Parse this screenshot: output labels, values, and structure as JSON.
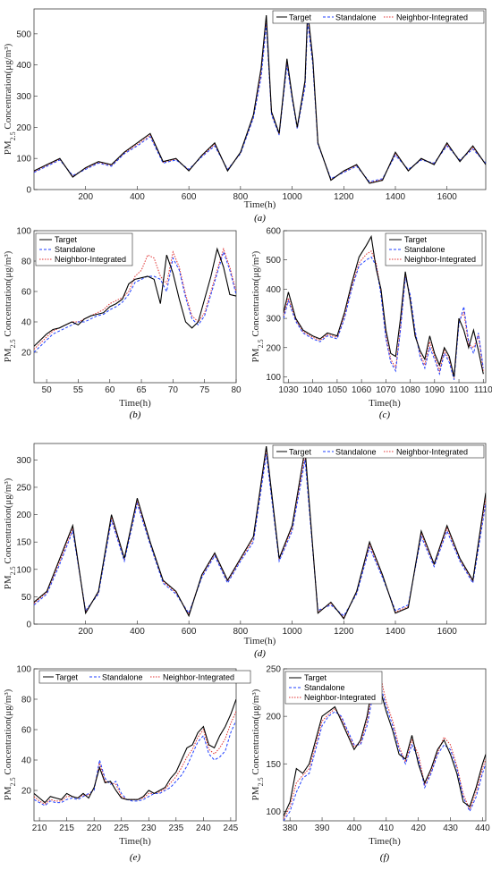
{
  "legend_labels": [
    "Target",
    "Standalone",
    "Neighbor-Integrated"
  ],
  "series_colors": {
    "Target": "#000000",
    "Standalone": "#1f3fff",
    "Neighbor-Integrated": "#e03030"
  },
  "chart_data": [
    {
      "id": "a",
      "type": "line",
      "caption": "(a)",
      "xlabel": "Time(h)",
      "ylabel": "PM2.5 Concentration(μg/m³)",
      "xlim": [
        0,
        1750
      ],
      "ylim": [
        0,
        580
      ],
      "xticks": [
        200,
        400,
        600,
        800,
        1000,
        1200,
        1400,
        1600
      ],
      "yticks": [
        0,
        100,
        200,
        300,
        400,
        500
      ],
      "legend": "top-right-inline",
      "x": [
        0,
        50,
        100,
        150,
        200,
        250,
        300,
        350,
        400,
        450,
        500,
        550,
        600,
        650,
        700,
        750,
        800,
        850,
        880,
        900,
        920,
        950,
        980,
        1000,
        1020,
        1050,
        1060,
        1080,
        1100,
        1150,
        1200,
        1250,
        1300,
        1350,
        1400,
        1450,
        1500,
        1550,
        1600,
        1650,
        1700,
        1750
      ],
      "series": [
        {
          "name": "Target",
          "values": [
            60,
            80,
            100,
            40,
            70,
            90,
            80,
            120,
            150,
            180,
            90,
            100,
            60,
            110,
            150,
            60,
            120,
            240,
            390,
            560,
            250,
            180,
            420,
            300,
            200,
            350,
            575,
            420,
            150,
            30,
            60,
            80,
            20,
            30,
            120,
            60,
            100,
            80,
            150,
            90,
            140,
            80
          ]
        },
        {
          "name": "Standalone",
          "values": [
            55,
            75,
            95,
            45,
            65,
            85,
            75,
            115,
            140,
            170,
            85,
            95,
            65,
            105,
            140,
            65,
            115,
            230,
            360,
            530,
            240,
            175,
            400,
            290,
            195,
            330,
            540,
            400,
            145,
            35,
            55,
            75,
            25,
            35,
            110,
            65,
            95,
            85,
            140,
            95,
            130,
            85
          ]
        },
        {
          "name": "Neighbor-Integrated",
          "values": [
            58,
            78,
            98,
            42,
            68,
            88,
            78,
            118,
            145,
            175,
            88,
            98,
            62,
            108,
            145,
            62,
            118,
            235,
            375,
            545,
            245,
            178,
            410,
            295,
            198,
            340,
            560,
            410,
            148,
            32,
            58,
            78,
            22,
            32,
            115,
            62,
            98,
            82,
            145,
            92,
            135,
            82
          ]
        }
      ]
    },
    {
      "id": "b",
      "type": "line",
      "caption": "(b)",
      "xlabel": "Time(h)",
      "ylabel": "PM2.5 Concentration(μg/m³)",
      "xlim": [
        48,
        80
      ],
      "ylim": [
        0,
        100
      ],
      "xticks": [
        50,
        55,
        60,
        65,
        70,
        75,
        80
      ],
      "yticks": [
        20,
        40,
        60,
        80,
        100
      ],
      "legend": "top-left",
      "x": [
        48,
        49,
        50,
        51,
        52,
        53,
        54,
        55,
        56,
        57,
        58,
        59,
        60,
        61,
        62,
        63,
        64,
        65,
        66,
        67,
        68,
        69,
        70,
        71,
        72,
        73,
        74,
        75,
        76,
        77,
        78,
        79,
        80
      ],
      "series": [
        {
          "name": "Target",
          "values": [
            24,
            28,
            32,
            35,
            36,
            38,
            40,
            38,
            42,
            44,
            45,
            46,
            50,
            52,
            55,
            65,
            68,
            69,
            70,
            68,
            52,
            84,
            72,
            55,
            40,
            36,
            40,
            55,
            70,
            88,
            76,
            58,
            57
          ]
        },
        {
          "name": "Standalone",
          "values": [
            20,
            24,
            28,
            32,
            34,
            36,
            38,
            40,
            40,
            42,
            44,
            45,
            48,
            50,
            53,
            58,
            66,
            68,
            70,
            70,
            68,
            60,
            82,
            74,
            56,
            42,
            38,
            44,
            58,
            72,
            86,
            74,
            58
          ]
        },
        {
          "name": "Neighbor-Integrated",
          "values": [
            22,
            26,
            30,
            34,
            36,
            38,
            40,
            40,
            42,
            44,
            46,
            48,
            52,
            54,
            56,
            60,
            70,
            74,
            84,
            82,
            70,
            65,
            86,
            76,
            58,
            44,
            40,
            46,
            60,
            74,
            88,
            76,
            60
          ]
        }
      ]
    },
    {
      "id": "c",
      "type": "line",
      "caption": "(c)",
      "xlabel": "Time(h)",
      "ylabel": "PM2.5 Concentration(μg/m³)",
      "xlim": [
        1028,
        1111
      ],
      "ylim": [
        80,
        600
      ],
      "xticks": [
        1030,
        1040,
        1050,
        1060,
        1070,
        1080,
        1090,
        1100,
        1110
      ],
      "yticks": [
        100,
        200,
        300,
        400,
        500,
        600
      ],
      "legend": "top-right",
      "x": [
        1028,
        1030,
        1033,
        1036,
        1040,
        1043,
        1046,
        1050,
        1053,
        1056,
        1059,
        1062,
        1064,
        1066,
        1068,
        1070,
        1072,
        1074,
        1076,
        1078,
        1080,
        1082,
        1084,
        1086,
        1088,
        1090,
        1092,
        1094,
        1096,
        1098,
        1100,
        1102,
        1104,
        1106,
        1108,
        1110
      ],
      "series": [
        {
          "name": "Target",
          "values": [
            320,
            390,
            300,
            260,
            240,
            230,
            250,
            240,
            320,
            420,
            510,
            550,
            580,
            470,
            400,
            260,
            180,
            170,
            300,
            460,
            360,
            240,
            190,
            160,
            240,
            180,
            140,
            200,
            170,
            100,
            300,
            260,
            200,
            260,
            190,
            110
          ]
        },
        {
          "name": "Standalone",
          "values": [
            300,
            360,
            290,
            250,
            230,
            220,
            240,
            230,
            300,
            400,
            480,
            500,
            510,
            480,
            380,
            230,
            150,
            120,
            260,
            440,
            380,
            260,
            170,
            130,
            200,
            160,
            110,
            180,
            150,
            90,
            280,
            340,
            220,
            180,
            250,
            130
          ]
        },
        {
          "name": "Neighbor-Integrated",
          "values": [
            310,
            370,
            295,
            255,
            235,
            225,
            245,
            235,
            310,
            410,
            490,
            520,
            530,
            490,
            390,
            240,
            160,
            130,
            270,
            450,
            370,
            250,
            180,
            140,
            220,
            170,
            120,
            190,
            160,
            95,
            290,
            320,
            210,
            200,
            240,
            120
          ]
        }
      ]
    },
    {
      "id": "d",
      "type": "line",
      "caption": "(d)",
      "xlabel": "Time(h)",
      "ylabel": "PM2.5 Concentration(μg/m³)",
      "xlim": [
        0,
        1750
      ],
      "ylim": [
        0,
        330
      ],
      "xticks": [
        200,
        400,
        600,
        800,
        1000,
        1200,
        1400,
        1600
      ],
      "yticks": [
        0,
        50,
        100,
        150,
        200,
        250,
        300
      ],
      "legend": "top-right-inline",
      "x": [
        0,
        50,
        100,
        150,
        200,
        250,
        300,
        350,
        400,
        450,
        500,
        550,
        600,
        650,
        700,
        750,
        800,
        850,
        900,
        950,
        1000,
        1050,
        1100,
        1150,
        1200,
        1250,
        1300,
        1350,
        1400,
        1450,
        1500,
        1550,
        1600,
        1650,
        1700,
        1750
      ],
      "series": [
        {
          "name": "Target",
          "values": [
            40,
            60,
            120,
            180,
            20,
            60,
            200,
            120,
            230,
            150,
            80,
            60,
            15,
            90,
            130,
            80,
            120,
            160,
            325,
            120,
            180,
            320,
            20,
            40,
            10,
            60,
            150,
            90,
            20,
            30,
            170,
            110,
            180,
            120,
            80,
            240
          ]
        },
        {
          "name": "Standalone",
          "values": [
            35,
            55,
            110,
            170,
            25,
            55,
            190,
            115,
            220,
            145,
            75,
            55,
            20,
            85,
            125,
            75,
            115,
            150,
            310,
            115,
            170,
            300,
            25,
            35,
            15,
            55,
            140,
            85,
            25,
            35,
            160,
            105,
            170,
            115,
            75,
            220
          ]
        },
        {
          "name": "Neighbor-Integrated",
          "values": [
            38,
            58,
            115,
            175,
            22,
            58,
            195,
            118,
            225,
            148,
            78,
            58,
            18,
            88,
            128,
            78,
            118,
            155,
            318,
            118,
            175,
            310,
            22,
            38,
            12,
            58,
            145,
            88,
            22,
            32,
            165,
            108,
            175,
            118,
            78,
            230
          ]
        }
      ]
    },
    {
      "id": "e",
      "type": "line",
      "caption": "(e)",
      "xlabel": "Time(h)",
      "ylabel": "PM2.5 Concentration(μg/m³)",
      "xlim": [
        209,
        246
      ],
      "ylim": [
        0,
        100
      ],
      "xticks": [
        210,
        215,
        220,
        225,
        230,
        235,
        240,
        245
      ],
      "yticks": [
        20,
        40,
        60,
        80,
        100
      ],
      "legend": "top-inline",
      "x": [
        209,
        210,
        211,
        212,
        213,
        214,
        215,
        216,
        217,
        218,
        219,
        220,
        221,
        222,
        223,
        224,
        225,
        226,
        227,
        228,
        229,
        230,
        231,
        232,
        233,
        234,
        235,
        236,
        237,
        238,
        239,
        240,
        241,
        242,
        243,
        244,
        245,
        246
      ],
      "series": [
        {
          "name": "Target",
          "values": [
            18,
            15,
            12,
            16,
            15,
            14,
            18,
            16,
            15,
            18,
            15,
            22,
            35,
            25,
            26,
            20,
            15,
            14,
            14,
            14,
            16,
            20,
            18,
            20,
            22,
            28,
            32,
            40,
            48,
            50,
            58,
            62,
            50,
            48,
            56,
            62,
            70,
            80
          ]
        },
        {
          "name": "Standalone",
          "values": [
            14,
            12,
            10,
            13,
            12,
            12,
            14,
            15,
            14,
            16,
            18,
            20,
            40,
            28,
            24,
            26,
            18,
            14,
            13,
            13,
            14,
            16,
            18,
            18,
            20,
            22,
            26,
            30,
            36,
            44,
            52,
            56,
            44,
            40,
            42,
            46,
            58,
            66
          ]
        },
        {
          "name": "Neighbor-Integrated",
          "values": [
            16,
            13,
            11,
            14,
            13,
            13,
            16,
            16,
            15,
            17,
            17,
            21,
            38,
            26,
            25,
            24,
            16,
            14,
            14,
            14,
            15,
            18,
            18,
            19,
            21,
            25,
            29,
            35,
            42,
            47,
            55,
            60,
            47,
            44,
            48,
            54,
            64,
            72
          ]
        }
      ]
    },
    {
      "id": "f",
      "type": "line",
      "caption": "(f)",
      "xlabel": "Time(h)",
      "ylabel": "PM2.5 Concentration(μg/m³)",
      "xlim": [
        378,
        441
      ],
      "ylim": [
        90,
        250
      ],
      "xticks": [
        380,
        390,
        400,
        410,
        420,
        430,
        440
      ],
      "yticks": [
        100,
        150,
        200,
        250
      ],
      "legend": "top-left",
      "x": [
        378,
        380,
        382,
        384,
        386,
        388,
        390,
        392,
        394,
        396,
        398,
        400,
        402,
        404,
        406,
        408,
        410,
        412,
        414,
        416,
        418,
        420,
        422,
        424,
        426,
        428,
        430,
        432,
        434,
        436,
        438,
        440,
        441
      ],
      "series": [
        {
          "name": "Target",
          "values": [
            95,
            110,
            145,
            140,
            150,
            175,
            200,
            205,
            210,
            195,
            180,
            165,
            175,
            200,
            238,
            230,
            205,
            185,
            160,
            155,
            180,
            150,
            130,
            145,
            165,
            175,
            160,
            140,
            110,
            105,
            125,
            150,
            160
          ]
        },
        {
          "name": "Standalone",
          "values": [
            90,
            100,
            120,
            135,
            140,
            165,
            190,
            200,
            205,
            200,
            185,
            170,
            170,
            190,
            225,
            235,
            210,
            190,
            165,
            150,
            170,
            155,
            125,
            140,
            160,
            170,
            165,
            145,
            115,
            100,
            115,
            140,
            150
          ]
        },
        {
          "name": "Neighbor-Integrated",
          "values": [
            92,
            105,
            130,
            138,
            145,
            170,
            195,
            202,
            208,
            198,
            183,
            168,
            172,
            195,
            232,
            245,
            215,
            195,
            168,
            152,
            175,
            160,
            128,
            142,
            162,
            178,
            170,
            148,
            118,
            102,
            120,
            145,
            155
          ]
        }
      ]
    }
  ]
}
